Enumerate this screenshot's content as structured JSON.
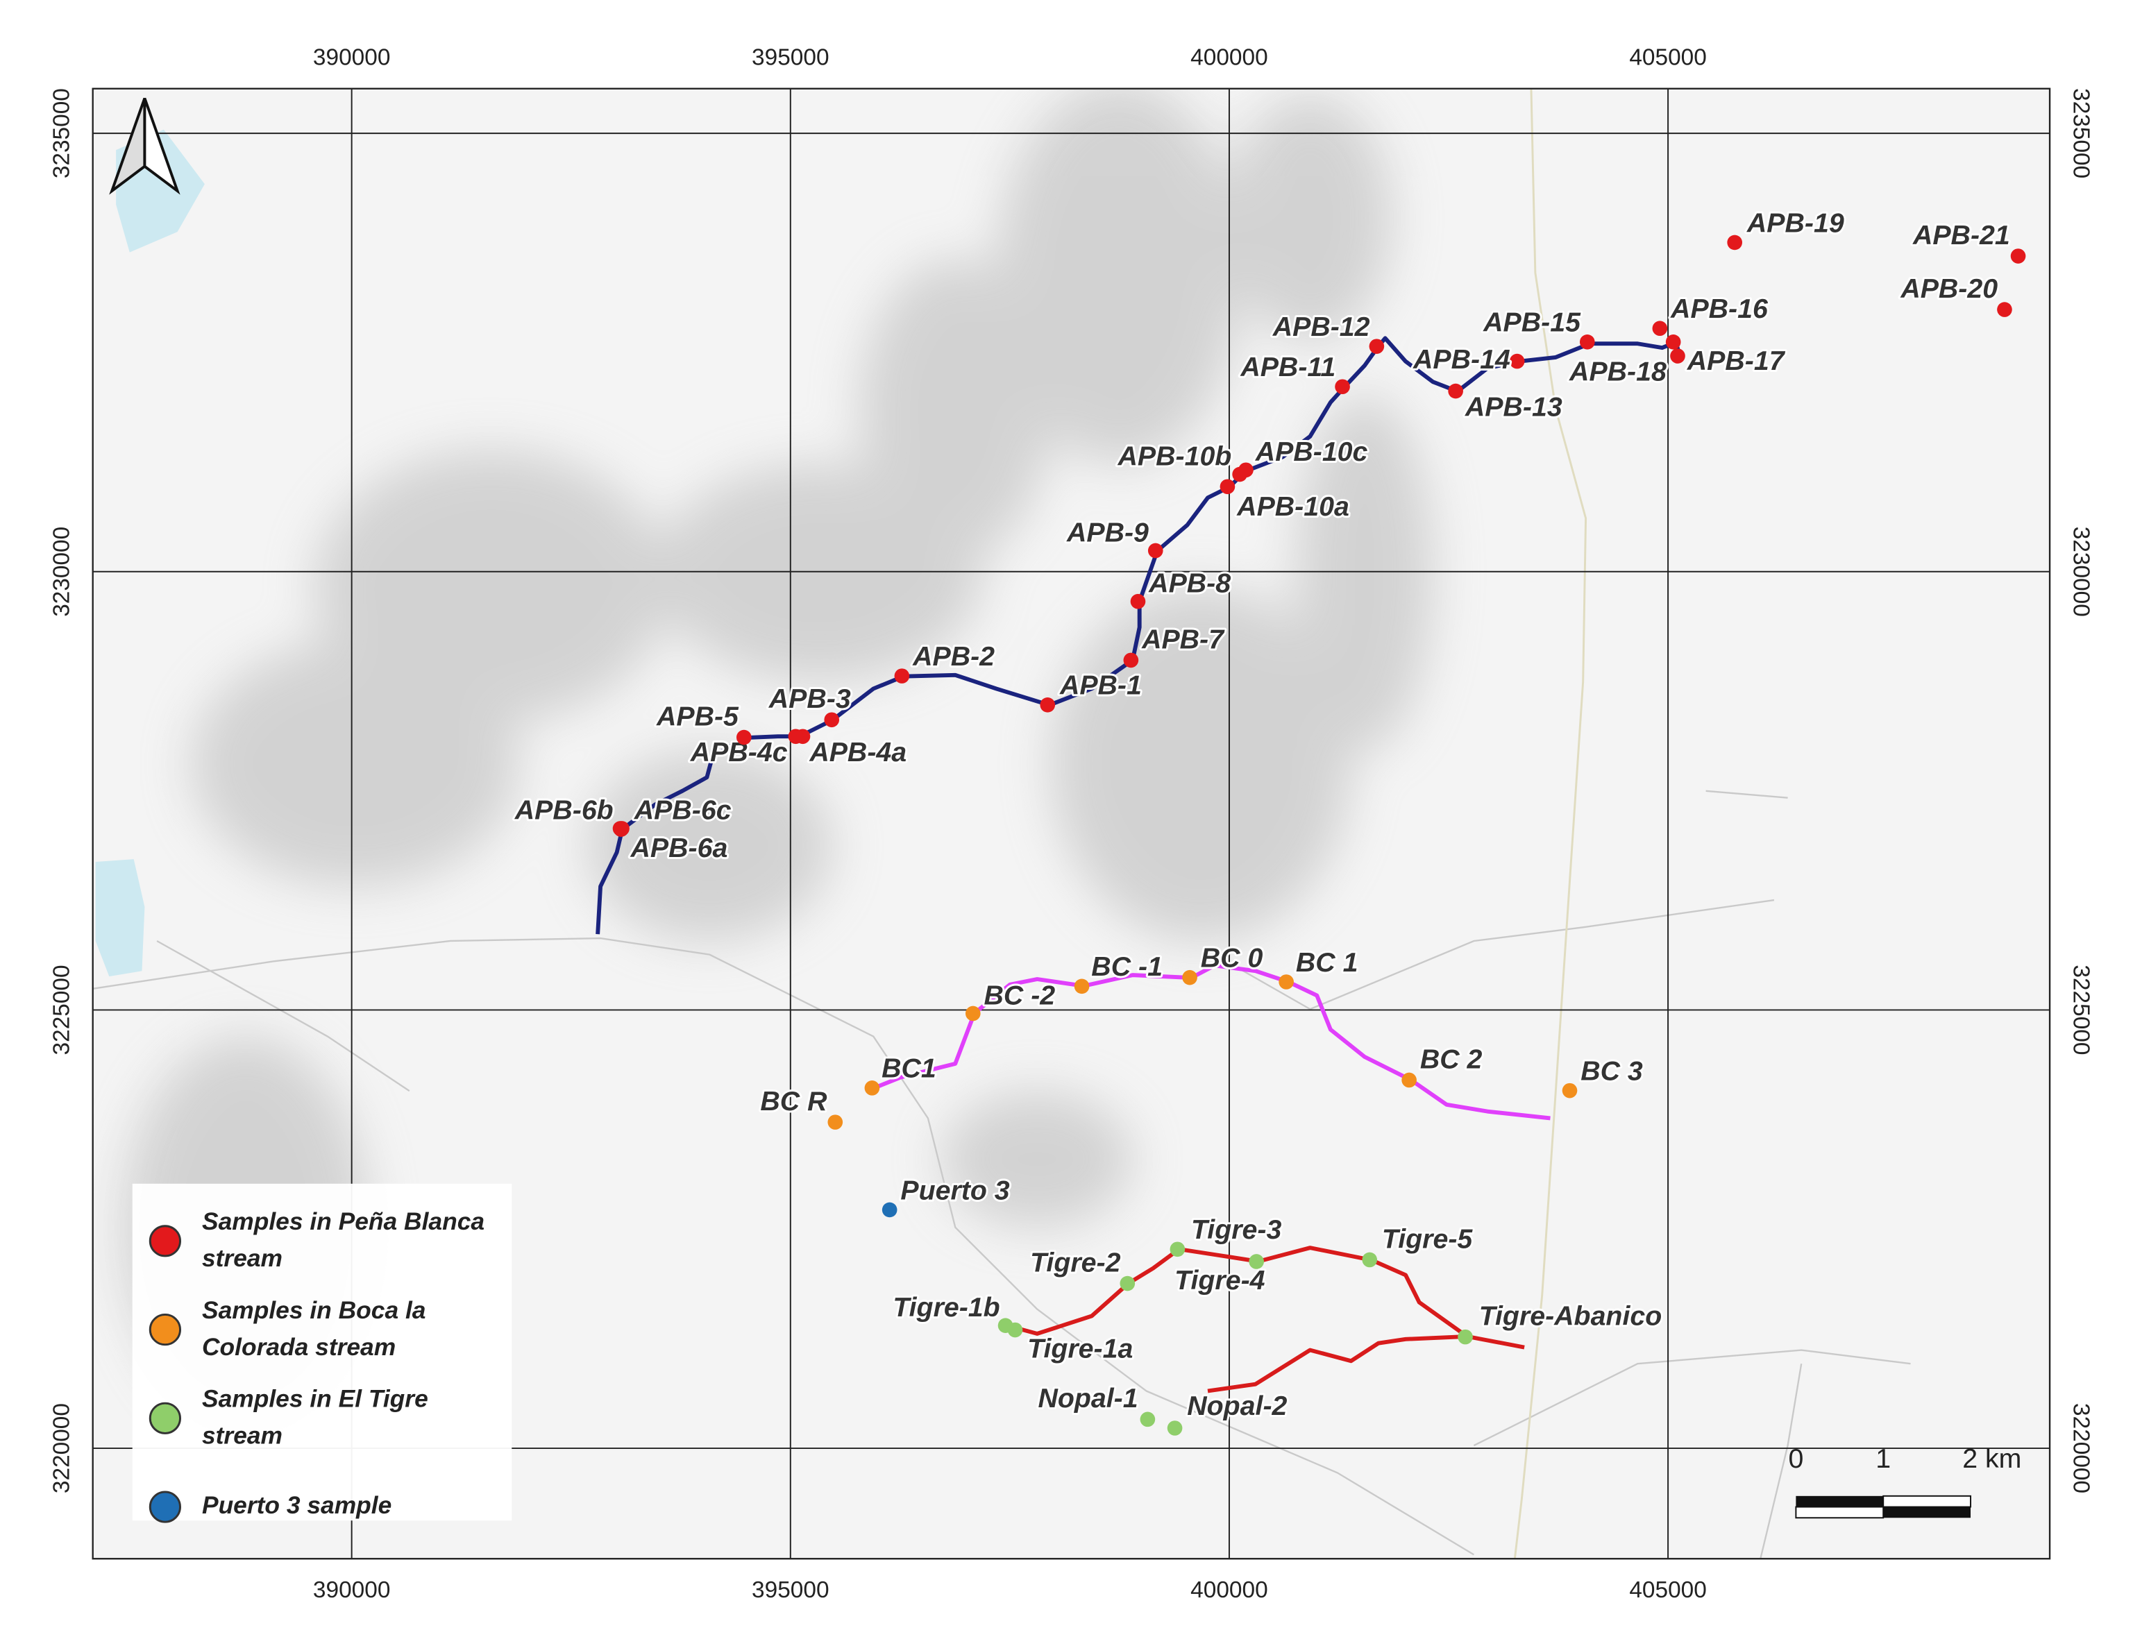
{
  "map": {
    "xlim": [
      387050,
      409350
    ],
    "ylim": [
      3218740,
      3235510
    ],
    "xticks": [
      390000,
      395000,
      400000,
      405000
    ],
    "yticks": [
      3220000,
      3225000,
      3230000,
      3235000
    ],
    "groups": [
      {
        "legend_lines": [
          "Samples in Peña Blanca",
          "stream"
        ],
        "color": "#e3191c",
        "points": [
          {
            "label": "APB-1",
            "x": 397930,
            "y": 3228480
          },
          {
            "label": "APB-2",
            "x": 396270,
            "y": 3228810
          },
          {
            "label": "APB-3",
            "x": 395470,
            "y": 3228310
          },
          {
            "label": "APB-4a",
            "x": 395140,
            "y": 3228120
          },
          {
            "label": "APB-4c",
            "x": 395060,
            "y": 3228120
          },
          {
            "label": "APB-5",
            "x": 394470,
            "y": 3228110
          },
          {
            "label": "APB-6a",
            "x": 393070,
            "y": 3227060
          },
          {
            "label": "APB-6b",
            "x": 393060,
            "y": 3227070
          },
          {
            "label": "APB-6c",
            "x": 393080,
            "y": 3227070
          },
          {
            "label": "APB-7",
            "x": 398880,
            "y": 3228990
          },
          {
            "label": "APB-8",
            "x": 398960,
            "y": 3229660
          },
          {
            "label": "APB-9",
            "x": 399160,
            "y": 3230240
          },
          {
            "label": "APB-10a",
            "x": 399980,
            "y": 3230970
          },
          {
            "label": "APB-10b",
            "x": 400120,
            "y": 3231110
          },
          {
            "label": "APB-10c",
            "x": 400190,
            "y": 3231160
          },
          {
            "label": "APB-11",
            "x": 401290,
            "y": 3232110
          },
          {
            "label": "APB-12",
            "x": 401680,
            "y": 3232570
          },
          {
            "label": "APB-13",
            "x": 402580,
            "y": 3232060
          },
          {
            "label": "APB-14",
            "x": 403280,
            "y": 3232400
          },
          {
            "label": "APB-15",
            "x": 404080,
            "y": 3232620
          },
          {
            "label": "APB-16",
            "x": 404907,
            "y": 3232775
          },
          {
            "label": "APB-17",
            "x": 405110,
            "y": 3232460
          },
          {
            "label": "APB-18",
            "x": 405060,
            "y": 3232620
          },
          {
            "label": "APB-19",
            "x": 405760,
            "y": 3233755
          },
          {
            "label": "APB-20",
            "x": 408835,
            "y": 3232990
          },
          {
            "label": "APB-21",
            "x": 408990,
            "y": 3233600
          }
        ]
      },
      {
        "legend_lines": [
          "Samples in Boca la",
          "Colorada stream"
        ],
        "color": "#f28e1c",
        "points": [
          {
            "label": "BC R",
            "x": 395510,
            "y": 3223720
          },
          {
            "label": "BC1",
            "x": 395930,
            "y": 3224110
          },
          {
            "label": "BC -2",
            "x": 397080,
            "y": 3224960
          },
          {
            "label": "BC -1",
            "x": 398320,
            "y": 3225270
          },
          {
            "label": "BC 0",
            "x": 399550,
            "y": 3225370
          },
          {
            "label": "BC 1",
            "x": 400650,
            "y": 3225320
          },
          {
            "label": "BC 2",
            "x": 402050,
            "y": 3224200
          },
          {
            "label": "BC 3",
            "x": 403880,
            "y": 3224080
          }
        ]
      },
      {
        "legend_lines": [
          "Samples in El Tigre",
          "stream"
        ],
        "color": "#8fce6a",
        "points": [
          {
            "label": "Tigre-1a",
            "x": 397560,
            "y": 3221350
          },
          {
            "label": "Tigre-1b",
            "x": 397450,
            "y": 3221400
          },
          {
            "label": "Tigre-2",
            "x": 398840,
            "y": 3221880
          },
          {
            "label": "Tigre-3",
            "x": 399410,
            "y": 3222270
          },
          {
            "label": "Tigre-4",
            "x": 400310,
            "y": 3222130
          },
          {
            "label": "Tigre-5",
            "x": 401600,
            "y": 3222150
          },
          {
            "label": "Tigre-Abanico",
            "x": 402690,
            "y": 3221270
          },
          {
            "label": "Nopal-1",
            "x": 399070,
            "y": 3220330
          },
          {
            "label": "Nopal-2",
            "x": 399380,
            "y": 3220230
          }
        ]
      },
      {
        "legend_lines": [
          "Puerto 3 sample"
        ],
        "color": "#1f6fb5",
        "points": [
          {
            "label": "Puerto 3",
            "x": 396130,
            "y": 3222720
          }
        ]
      }
    ],
    "scale_bar": {
      "labels": [
        "0",
        "1",
        "2 km"
      ]
    }
  }
}
